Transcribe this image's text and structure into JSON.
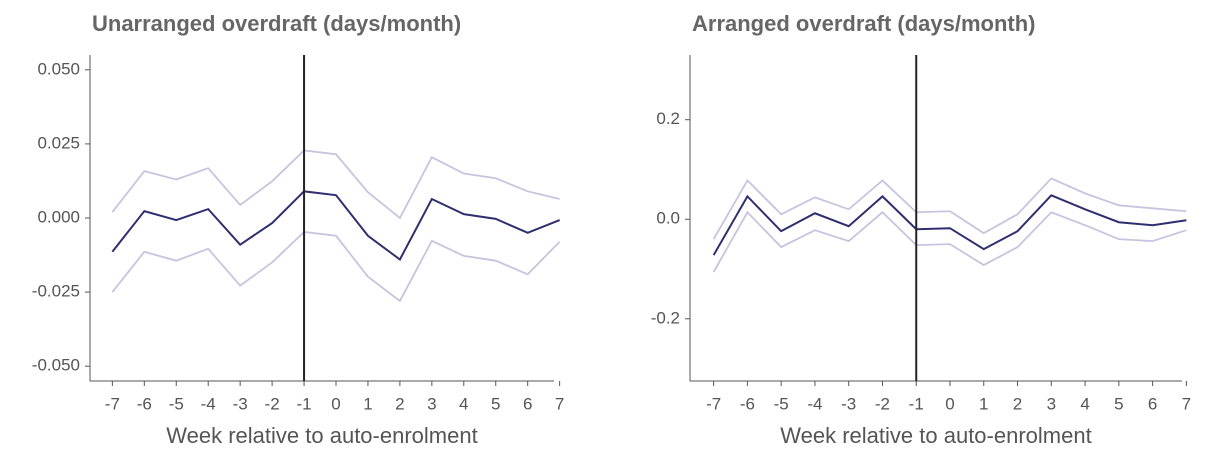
{
  "chart_data": [
    {
      "type": "line",
      "title": "Unarranged overdraft (days/month)",
      "xlabel": "Week relative to auto-enrolment",
      "x": [
        -7,
        -6,
        -5,
        -4,
        -3,
        -2,
        -1,
        0,
        1,
        2,
        3,
        4,
        5,
        6,
        7
      ],
      "series": [
        {
          "color": "#c6c4df",
          "values": [
            0.002,
            0.0158,
            0.013,
            0.0168,
            0.0044,
            0.0124,
            0.0228,
            0.0215,
            0.0087,
            0,
            0.0205,
            0.015,
            0.0134,
            0.009,
            0.0064
          ]
        },
        {
          "color": "#c6c4df",
          "values": [
            -0.025,
            -0.0114,
            -0.0144,
            -0.0104,
            -0.0228,
            -0.015,
            -0.0047,
            -0.006,
            -0.0198,
            -0.028,
            -0.0077,
            -0.0128,
            -0.0144,
            -0.019,
            -0.008
          ]
        },
        {
          "color": "#2f2e6f",
          "values": [
            -0.0114,
            0.0023,
            -0.0007,
            0.003,
            -0.009,
            -0.0017,
            0.009,
            0.0077,
            -0.006,
            -0.014,
            0.0064,
            0.0013,
            -0.0003,
            -0.005,
            -0.0007
          ]
        }
      ],
      "vline": -1,
      "vline_color": "#222222",
      "xlim": [
        -7.7,
        7.7
      ],
      "xticks": [
        -7,
        -6,
        -5,
        -4,
        -3,
        -2,
        -1,
        0,
        1,
        2,
        3,
        4,
        5,
        6,
        7
      ],
      "ylim": [
        -0.055,
        0.055
      ],
      "yticks": [
        {
          "value": -0.05,
          "label": "-0.050"
        },
        {
          "value": -0.025,
          "label": "-0.025"
        },
        {
          "value": 0,
          "label": "0.000"
        },
        {
          "value": 0.025,
          "label": "0.025"
        },
        {
          "value": 0.05,
          "label": "0.050"
        }
      ]
    },
    {
      "type": "line",
      "title": "Arranged overdraft (days/month)",
      "xlabel": "Week relative to auto-enrolment",
      "x": [
        -7,
        -6,
        -5,
        -4,
        -3,
        -2,
        -1,
        0,
        1,
        2,
        3,
        4,
        5,
        6,
        7
      ],
      "series": [
        {
          "color": "#c6c4df",
          "values": [
            -0.04,
            0.078,
            0.01,
            0.044,
            0.02,
            0.078,
            0.014,
            0.016,
            -0.028,
            0.01,
            0.082,
            0.052,
            0.028,
            0.022,
            0.016
          ]
        },
        {
          "color": "#c6c4df",
          "values": [
            -0.106,
            0.014,
            -0.056,
            -0.022,
            -0.044,
            0.014,
            -0.052,
            -0.05,
            -0.092,
            -0.056,
            0.014,
            -0.012,
            -0.04,
            -0.044,
            -0.022
          ]
        },
        {
          "color": "#2f2e6f",
          "values": [
            -0.072,
            0.046,
            -0.024,
            0.012,
            -0.014,
            0.046,
            -0.02,
            -0.018,
            -0.06,
            -0.024,
            0.048,
            0.02,
            -0.006,
            -0.012,
            -0.002
          ]
        }
      ],
      "vline": -1,
      "vline_color": "#222222",
      "xlim": [
        -7.7,
        7.7
      ],
      "xticks": [
        -7,
        -6,
        -5,
        -4,
        -3,
        -2,
        -1,
        0,
        1,
        2,
        3,
        4,
        5,
        6,
        7
      ],
      "ylim": [
        -0.325,
        0.33
      ],
      "yticks": [
        -0.2,
        {
          "value": 0,
          "label": "0.0"
        },
        0.2
      ]
    }
  ]
}
